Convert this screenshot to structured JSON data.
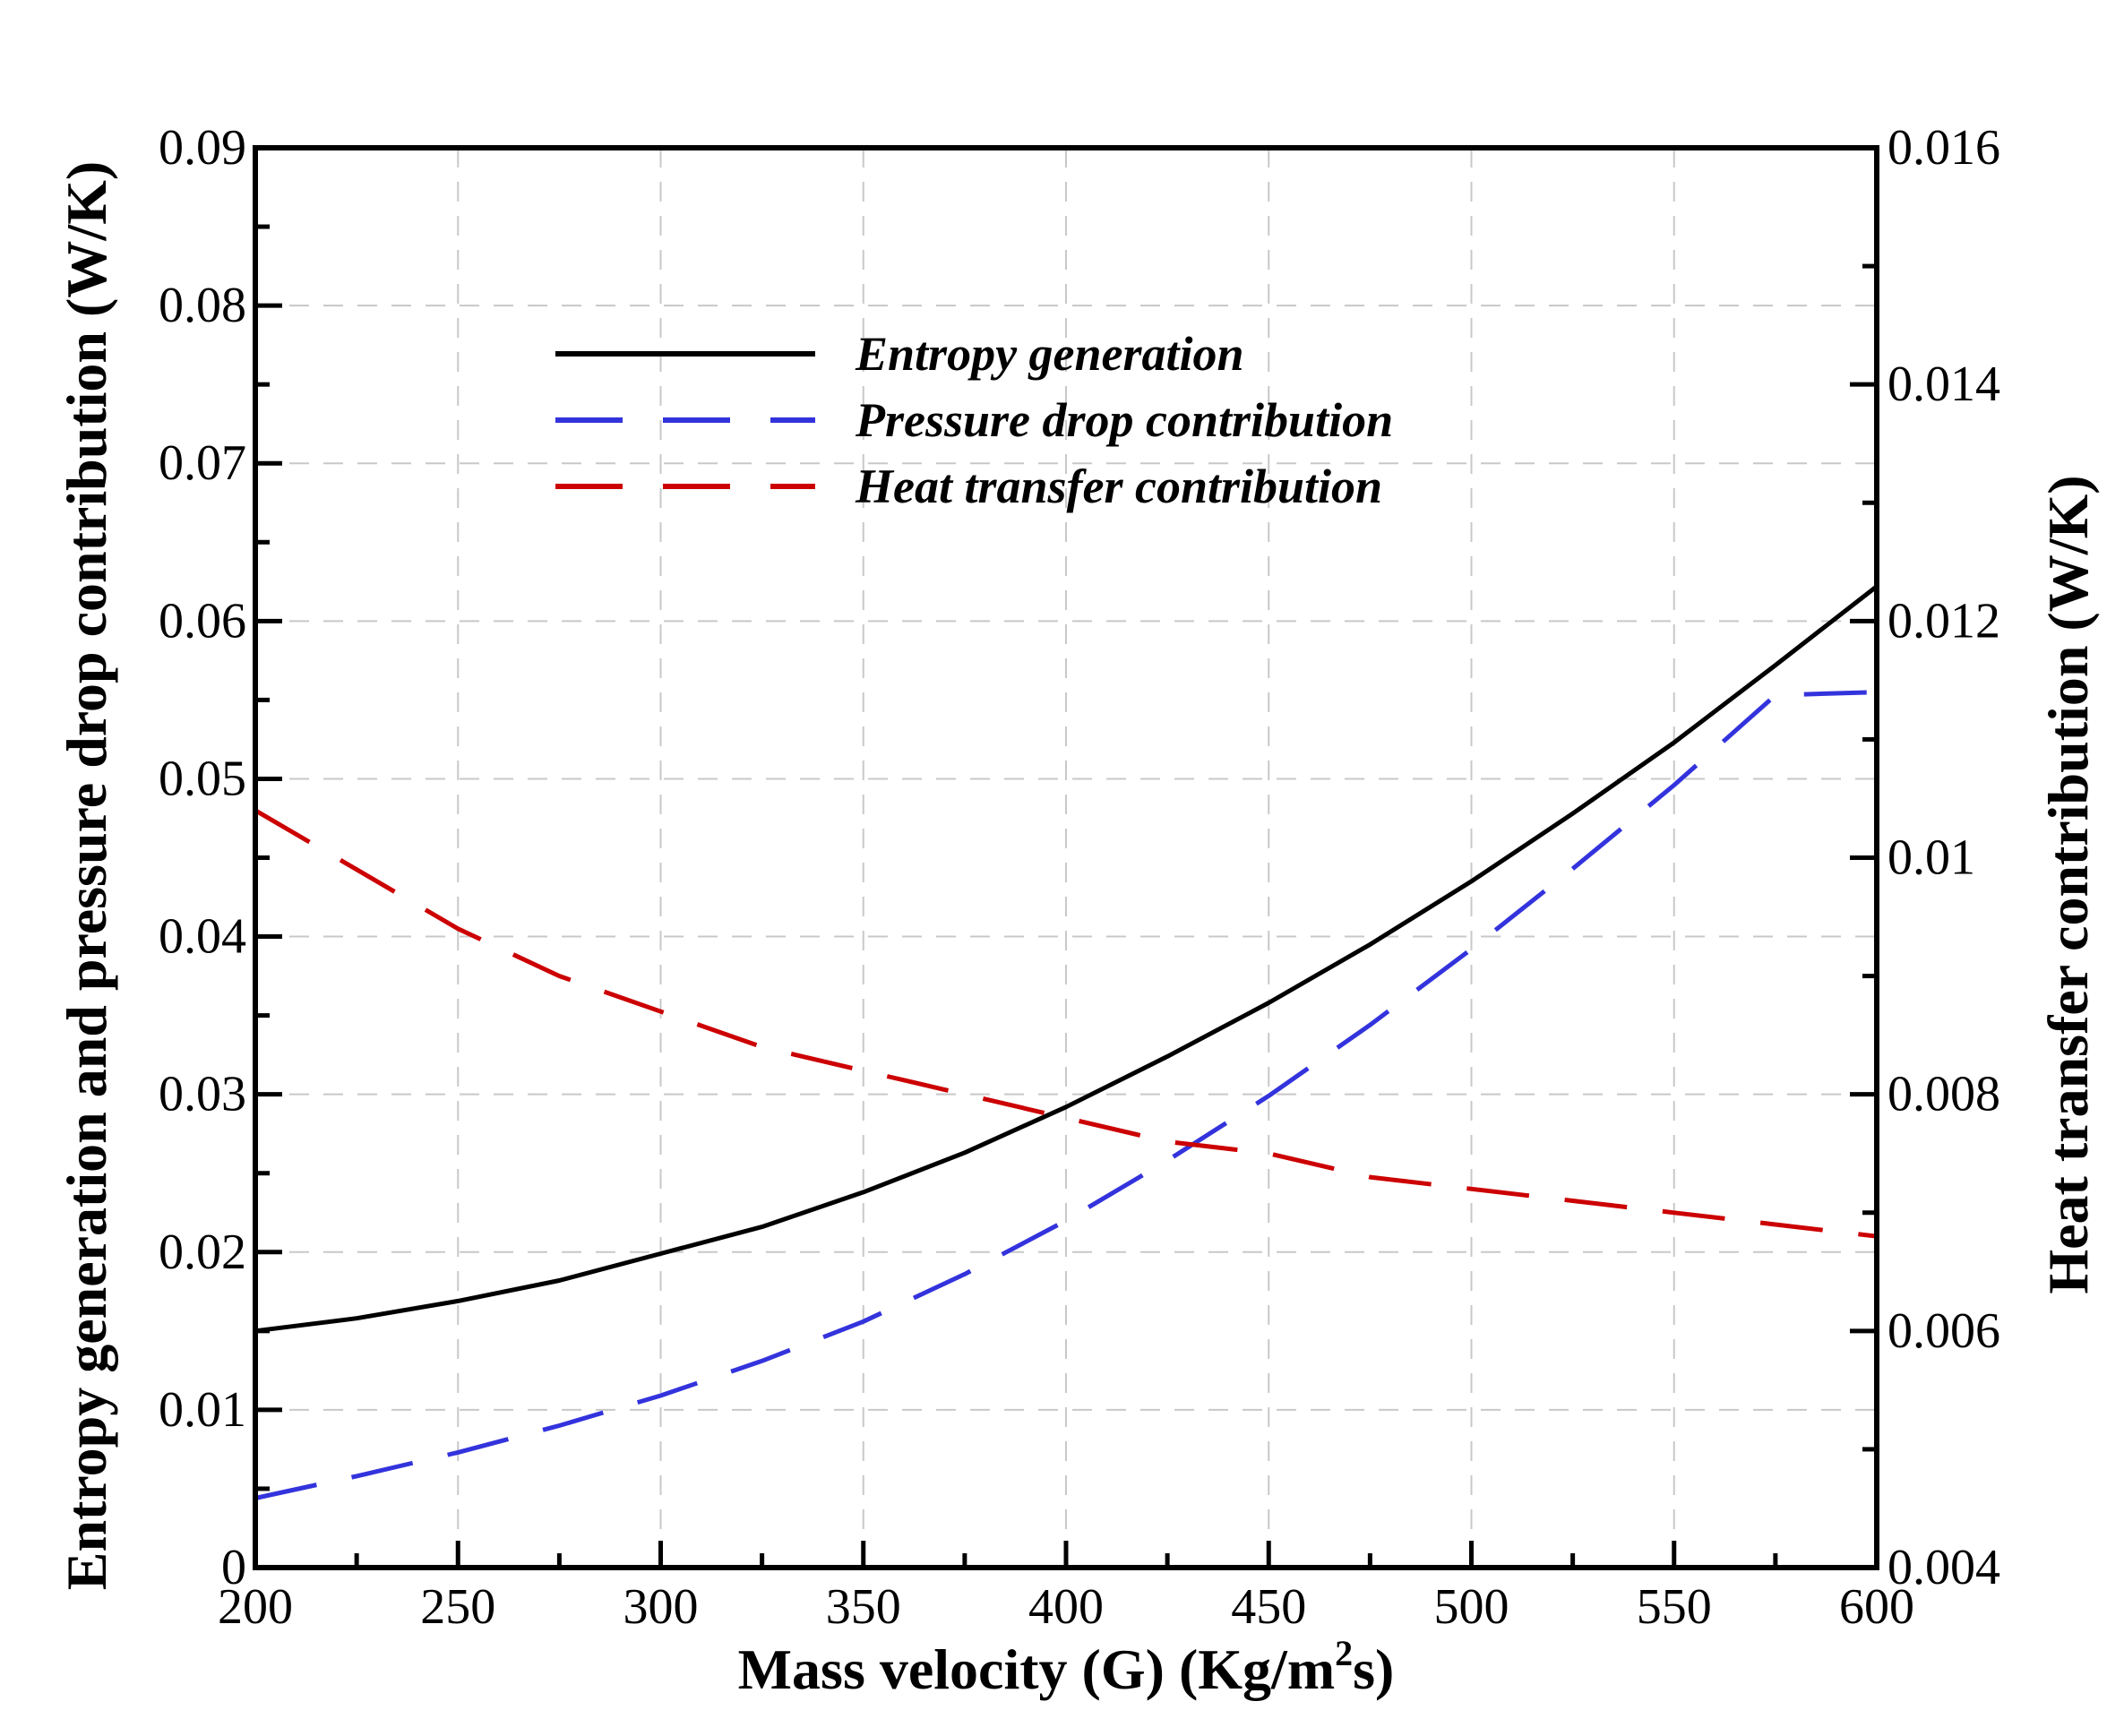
{
  "chart_data": {
    "type": "line",
    "x": [
      200,
      225,
      250,
      275,
      300,
      325,
      350,
      375,
      400,
      425,
      450,
      475,
      500,
      525,
      550,
      575,
      600
    ],
    "xlabel": "Mass velocity (G) (Kg/m",
    "xlabel_sup": "2",
    "xlabel_tail": "s)",
    "ylabel_left": "Entropy generation and pressure drop contribution (W/K)",
    "ylabel_right": "Heat transfer contribution (W/K)",
    "xlim": [
      200,
      600
    ],
    "ylim_left": [
      0,
      0.09
    ],
    "ylim_right": [
      0.004,
      0.016
    ],
    "x_ticks": [
      "200",
      "250",
      "300",
      "350",
      "400",
      "450",
      "500",
      "550",
      "600"
    ],
    "y_left_ticks": [
      "0",
      "0.01",
      "0.02",
      "0.03",
      "0.04",
      "0.05",
      "0.06",
      "0.07",
      "0.08",
      "0.09"
    ],
    "y_right_ticks": [
      "0.004",
      "0.006",
      "0.008",
      "0.01",
      "0.012",
      "0.014",
      "0.016"
    ],
    "grid": true,
    "legend_position": "top-center",
    "series": [
      {
        "name": "Entropy generation",
        "axis": "left",
        "style": "solid",
        "color": "#000000",
        "values": [
          0.015,
          0.0158,
          0.0169,
          0.0182,
          0.0199,
          0.0216,
          0.0238,
          0.0263,
          0.0292,
          0.0324,
          0.0358,
          0.0395,
          0.0435,
          0.0478,
          0.0523,
          0.0572,
          0.0622
        ]
      },
      {
        "name": "Pressure drop contribution",
        "axis": "left",
        "style": "dashed",
        "color": "#3333dd",
        "values": [
          0.0044,
          0.0058,
          0.0073,
          0.009,
          0.0109,
          0.0131,
          0.0156,
          0.0186,
          0.022,
          0.0258,
          0.0299,
          0.0344,
          0.0392,
          0.0443,
          0.0496,
          0.0553,
          0.0555
        ]
      },
      {
        "name": "Heat transfer contribution",
        "axis": "right",
        "style": "dashed",
        "color": "#cc0000",
        "values": [
          0.0104,
          0.0099,
          0.0094,
          0.009,
          0.0087,
          0.0084,
          0.0082,
          0.008,
          0.0078,
          0.0076,
          0.0075,
          0.0073,
          0.0072,
          0.0071,
          0.007,
          0.0069,
          0.0068
        ]
      }
    ]
  }
}
